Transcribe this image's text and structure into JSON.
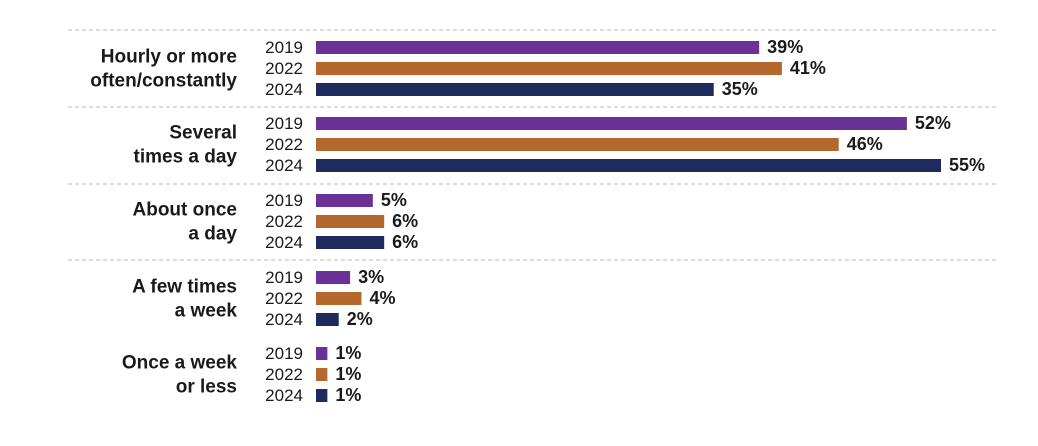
{
  "chart_data": {
    "type": "bar",
    "orientation": "horizontal",
    "categories": [
      [
        "Hourly or more",
        "often/constantly"
      ],
      [
        "Several",
        "times a day"
      ],
      [
        "About once",
        "a day"
      ],
      [
        "A few times",
        "a week"
      ],
      [
        "Once a week",
        "or less"
      ]
    ],
    "series": [
      {
        "name": "2019",
        "color": "#6a3196",
        "values": [
          39,
          52,
          5,
          3,
          1
        ]
      },
      {
        "name": "2022",
        "color": "#b5682e",
        "values": [
          41,
          46,
          6,
          4,
          1
        ]
      },
      {
        "name": "2024",
        "color": "#1e2b5c",
        "values": [
          35,
          55,
          6,
          2,
          1
        ]
      }
    ],
    "value_suffix": "%",
    "xlim": [
      0,
      55
    ],
    "grid": false,
    "separators": "dashed"
  }
}
